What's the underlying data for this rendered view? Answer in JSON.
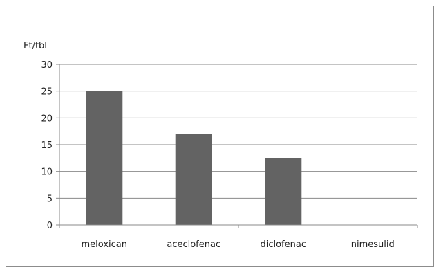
{
  "chart_data": {
    "type": "bar",
    "categories": [
      "meloxican",
      "aceclofenac",
      "diclofenac",
      "nimesulid"
    ],
    "values": [
      25,
      17,
      12.5,
      0
    ],
    "title": "",
    "xlabel": "",
    "ylabel": "Ft/tbl",
    "ylim": [
      0,
      30
    ],
    "yticks": [
      0,
      5,
      10,
      15,
      20,
      25,
      30
    ],
    "grid": true,
    "legend": "none",
    "bar_color": "#636363"
  }
}
